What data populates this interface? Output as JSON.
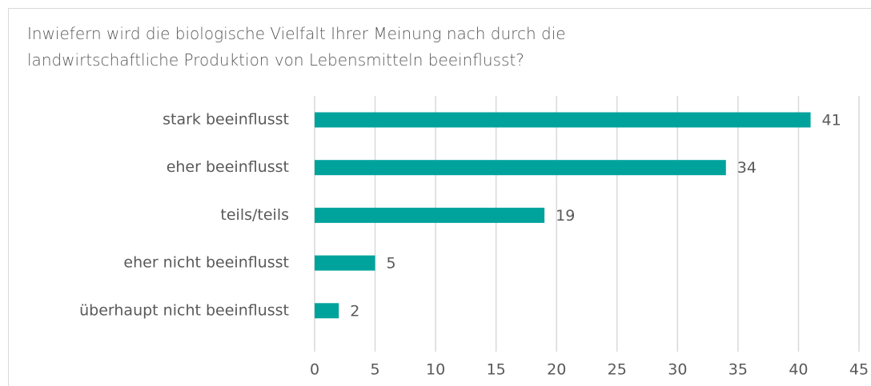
{
  "chart_data": {
    "type": "bar",
    "orientation": "horizontal",
    "title": "Inwiefern wird die biologische Vielfalt Ihrer Meinung nach durch die landwirtschaftliche Produktion von Lebensmitteln beeinflusst?",
    "categories": [
      "stark beeinflusst",
      "eher beeinflusst",
      "teils/teils",
      "eher nicht beeinflusst",
      "überhaupt nicht beeinflusst"
    ],
    "values": [
      41,
      34,
      19,
      5,
      2
    ],
    "color": "#00a39c",
    "xlim": [
      0,
      45
    ],
    "xticks": [
      0,
      5,
      10,
      15,
      20,
      25,
      30,
      35,
      40,
      45
    ],
    "grid": true
  }
}
